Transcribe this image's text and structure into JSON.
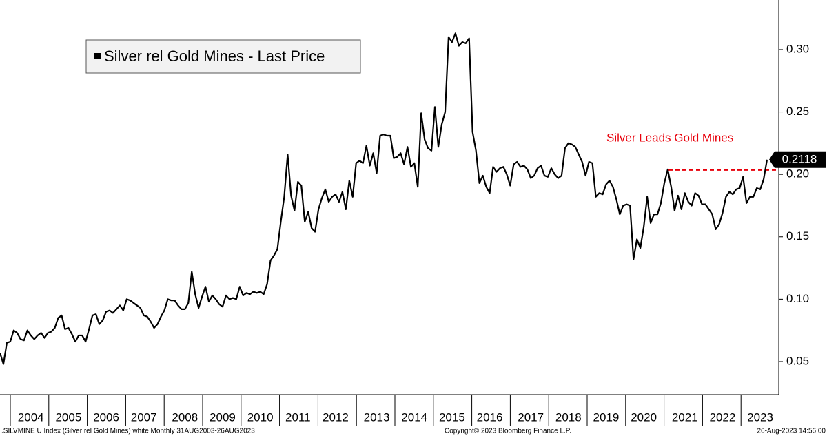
{
  "chart_data": {
    "type": "line",
    "series": [
      {
        "name": "Silver rel Gold Mines - Last Price",
        "color": "#000000",
        "values": [
          0.057,
          0.048,
          0.065,
          0.066,
          0.075,
          0.073,
          0.068,
          0.067,
          0.075,
          0.071,
          0.068,
          0.071,
          0.073,
          0.069,
          0.073,
          0.074,
          0.077,
          0.085,
          0.087,
          0.076,
          0.077,
          0.072,
          0.066,
          0.071,
          0.071,
          0.066,
          0.076,
          0.087,
          0.088,
          0.08,
          0.083,
          0.09,
          0.091,
          0.089,
          0.092,
          0.095,
          0.091,
          0.1,
          0.099,
          0.097,
          0.095,
          0.093,
          0.087,
          0.086,
          0.082,
          0.077,
          0.08,
          0.086,
          0.091,
          0.1,
          0.099,
          0.099,
          0.095,
          0.092,
          0.092,
          0.097,
          0.122,
          0.104,
          0.093,
          0.102,
          0.11,
          0.098,
          0.103,
          0.1,
          0.096,
          0.094,
          0.103,
          0.1,
          0.101,
          0.1,
          0.11,
          0.103,
          0.105,
          0.104,
          0.106,
          0.105,
          0.106,
          0.104,
          0.112,
          0.131,
          0.135,
          0.14,
          0.162,
          0.182,
          0.216,
          0.183,
          0.171,
          0.194,
          0.191,
          0.162,
          0.17,
          0.157,
          0.154,
          0.172,
          0.181,
          0.188,
          0.178,
          0.182,
          0.184,
          0.178,
          0.186,
          0.172,
          0.195,
          0.182,
          0.209,
          0.211,
          0.209,
          0.223,
          0.207,
          0.217,
          0.201,
          0.231,
          0.232,
          0.231,
          0.231,
          0.213,
          0.214,
          0.217,
          0.208,
          0.222,
          0.206,
          0.209,
          0.19,
          0.249,
          0.228,
          0.221,
          0.219,
          0.254,
          0.222,
          0.24,
          0.25,
          0.31,
          0.306,
          0.313,
          0.303,
          0.306,
          0.305,
          0.309,
          0.234,
          0.219,
          0.193,
          0.199,
          0.19,
          0.185,
          0.206,
          0.202,
          0.205,
          0.206,
          0.2,
          0.191,
          0.208,
          0.21,
          0.206,
          0.207,
          0.204,
          0.197,
          0.199,
          0.205,
          0.207,
          0.199,
          0.198,
          0.205,
          0.2,
          0.197,
          0.199,
          0.221,
          0.225,
          0.224,
          0.222,
          0.216,
          0.21,
          0.199,
          0.21,
          0.209,
          0.182,
          0.185,
          0.184,
          0.192,
          0.195,
          0.19,
          0.18,
          0.168,
          0.175,
          0.176,
          0.175,
          0.132,
          0.148,
          0.141,
          0.158,
          0.182,
          0.161,
          0.168,
          0.168,
          0.177,
          0.193,
          0.204,
          0.19,
          0.171,
          0.183,
          0.172,
          0.185,
          0.178,
          0.175,
          0.185,
          0.183,
          0.176,
          0.176,
          0.172,
          0.168,
          0.156,
          0.16,
          0.169,
          0.182,
          0.186,
          0.184,
          0.188,
          0.189,
          0.198,
          0.177,
          0.182,
          0.182,
          0.189,
          0.188,
          0.196,
          0.2118
        ]
      }
    ],
    "categories": [
      null,
      null,
      null,
      null,
      null,
      null,
      null,
      null,
      null,
      "2004",
      null,
      null,
      null,
      null,
      null,
      null,
      null,
      null,
      null,
      null,
      "2005",
      null,
      null,
      null,
      null,
      null,
      null,
      null,
      null,
      null,
      null,
      "2006",
      null,
      null,
      null,
      null,
      null,
      null,
      null,
      null,
      null,
      null,
      "2007",
      null,
      null,
      null,
      null,
      null,
      null,
      null,
      null,
      null,
      null,
      null,
      "2008",
      null,
      null,
      null,
      null,
      null,
      null,
      null,
      null,
      null,
      null,
      "2009",
      null,
      null,
      null,
      null,
      null,
      null,
      null,
      null,
      null,
      null,
      "2010",
      null,
      null,
      null,
      null,
      null,
      null,
      null,
      null,
      null,
      null,
      "2011",
      null,
      null,
      null,
      null,
      null,
      null,
      null,
      null,
      null,
      null,
      "2012",
      null,
      null,
      null,
      null,
      null,
      null,
      null,
      null,
      null,
      null,
      null,
      "2013",
      null,
      null,
      null,
      null,
      null,
      null,
      null,
      null,
      null,
      null,
      "2014",
      null,
      null,
      null,
      null,
      null,
      null,
      null,
      null,
      null,
      null,
      "2015",
      null,
      null,
      null,
      null,
      null,
      null,
      null,
      null,
      null,
      null,
      "2016",
      null,
      null,
      null,
      null,
      null,
      null,
      null,
      null,
      null,
      null,
      null,
      "2017",
      null,
      null,
      null,
      null,
      null,
      null,
      null,
      null,
      null,
      null,
      "2018",
      null,
      null,
      null,
      null,
      null,
      null,
      null,
      null,
      null,
      null,
      "2019",
      null,
      null,
      null,
      null,
      null,
      null,
      null,
      null,
      null,
      null,
      "2020",
      null,
      null,
      null,
      null,
      null,
      null,
      null,
      null,
      null,
      null,
      null,
      "2021",
      null,
      null,
      null,
      null,
      null,
      null,
      null,
      null,
      null,
      null,
      "2022",
      null,
      null,
      null,
      null,
      null,
      null,
      null,
      null,
      null,
      null,
      "2023",
      null,
      null
    ],
    "ylim": [
      0.0235,
      0.3397
    ],
    "yticks": [
      0.05,
      {
        "value": 0.1,
        "label": "0.10"
      },
      0.15,
      {
        "value": 0.2,
        "label": "0.20"
      },
      0.25,
      {
        "value": 0.3,
        "label": "0.30"
      }
    ],
    "grid": false,
    "annotation": "Silver Leads Gold Mines",
    "reference_line": {
      "value": 0.2035,
      "color": "#e8000b"
    },
    "footer": {
      "left": ".SILVMINE U Index (Silver rel Gold Mines) white  Monthly 31AUG2003-26AUG2023",
      "center": "Copyright© 2023 Bloomberg Finance L.P.",
      "right": "26-Aug-2023 14:56:00"
    }
  }
}
